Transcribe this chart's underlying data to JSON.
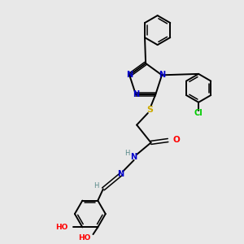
{
  "bg_color": "#e8e8e8",
  "bond_color": "#000000",
  "N_color": "#0000cc",
  "S_color": "#ccaa00",
  "O_color": "#ff0000",
  "Cl_color": "#00cc00",
  "H_color": "#558888",
  "figsize": [
    3.0,
    3.0
  ],
  "dpi": 100,
  "xlim": [
    0,
    10
  ],
  "ylim": [
    0,
    10
  ]
}
